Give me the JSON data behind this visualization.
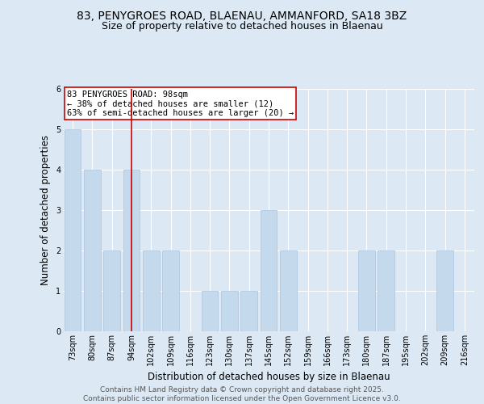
{
  "title_line1": "83, PENYGROES ROAD, BLAENAU, AMMANFORD, SA18 3BZ",
  "title_line2": "Size of property relative to detached houses in Blaenau",
  "xlabel": "Distribution of detached houses by size in Blaenau",
  "ylabel": "Number of detached properties",
  "categories": [
    "73sqm",
    "80sqm",
    "87sqm",
    "94sqm",
    "102sqm",
    "109sqm",
    "116sqm",
    "123sqm",
    "130sqm",
    "137sqm",
    "145sqm",
    "152sqm",
    "159sqm",
    "166sqm",
    "173sqm",
    "180sqm",
    "187sqm",
    "195sqm",
    "202sqm",
    "209sqm",
    "216sqm"
  ],
  "values": [
    5,
    4,
    2,
    4,
    2,
    2,
    0,
    1,
    1,
    1,
    3,
    2,
    0,
    0,
    0,
    2,
    2,
    0,
    0,
    2,
    0
  ],
  "bar_color": "#c5d9ed",
  "bar_edge_color": "#aac4de",
  "red_line_index": 3,
  "annotation_title": "83 PENYGROES ROAD: 98sqm",
  "annotation_line2": "← 38% of detached houses are smaller (12)",
  "annotation_line3": "63% of semi-detached houses are larger (20) →",
  "annotation_box_color": "#ffffff",
  "annotation_box_edge": "#cc0000",
  "ylim": [
    0,
    6
  ],
  "yticks": [
    0,
    1,
    2,
    3,
    4,
    5,
    6
  ],
  "background_color": "#dce9f5",
  "plot_bg_color": "#dce9f5",
  "footer_line1": "Contains HM Land Registry data © Crown copyright and database right 2025.",
  "footer_line2": "Contains public sector information licensed under the Open Government Licence v3.0.",
  "title_fontsize": 10,
  "subtitle_fontsize": 9,
  "axis_label_fontsize": 8.5,
  "tick_fontsize": 7,
  "annotation_fontsize": 7.5,
  "footer_fontsize": 6.5
}
